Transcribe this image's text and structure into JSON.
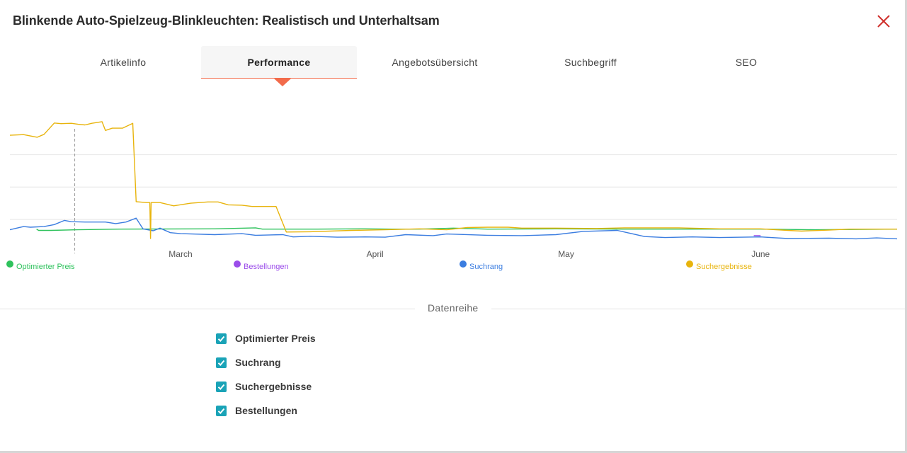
{
  "header": {
    "title": "Blinkende Auto-Spielzeug-Blinkleuchten: Realistisch und Unterhaltsam",
    "close_icon": "close-icon",
    "close_color": "#d0312d"
  },
  "tabs": [
    {
      "label": "Artikelinfo",
      "active": false
    },
    {
      "label": "Performance",
      "active": true
    },
    {
      "label": "Angebotsübersicht",
      "active": false
    },
    {
      "label": "Suchbegriff",
      "active": false
    },
    {
      "label": "SEO",
      "active": false
    }
  ],
  "colors": {
    "accent": "#f26b4b",
    "checkbox": "#1aa3b7",
    "optimierter_preis": "#2ec25c",
    "bestellungen": "#9b4dea",
    "suchrang": "#3b7de0",
    "suchergebnisse": "#e8b40c"
  },
  "chart_data": {
    "type": "line",
    "title": "",
    "x_axis_labels": [
      "March",
      "April",
      "May",
      "June"
    ],
    "legend_position": "bottom",
    "grid": "horizontal",
    "series": [
      {
        "name": "Optimierter Preis",
        "color": "#2ec25c",
        "values": [
          {
            "x": 3.9,
            "y": 2
          },
          {
            "x": 4.2,
            "y": 1.6
          },
          {
            "x": 6,
            "y": 1.6
          },
          {
            "x": 10,
            "y": 1.8
          },
          {
            "x": 16,
            "y": 2
          },
          {
            "x": 30,
            "y": 2.1
          },
          {
            "x": 36,
            "y": 2.4
          },
          {
            "x": 37,
            "y": 2
          },
          {
            "x": 45,
            "y": 2
          },
          {
            "x": 52,
            "y": 2.1
          },
          {
            "x": 56,
            "y": 2
          },
          {
            "x": 60,
            "y": 2
          },
          {
            "x": 65,
            "y": 2.3
          },
          {
            "x": 70,
            "y": 2
          },
          {
            "x": 80,
            "y": 2.1
          },
          {
            "x": 90,
            "y": 2
          },
          {
            "x": 100,
            "y": 2
          },
          {
            "x": 110,
            "y": 2
          },
          {
            "x": 118,
            "y": 1.8
          },
          {
            "x": 123,
            "y": 1.9
          },
          {
            "x": 130,
            "y": 2
          }
        ]
      },
      {
        "name": "Bestellungen",
        "color": "#9b4dea",
        "values": [
          {
            "x": 109,
            "y": 0
          },
          {
            "x": 110,
            "y": 0
          }
        ]
      },
      {
        "name": "Suchrang",
        "color": "#3b7de0",
        "values": [
          {
            "x": 0,
            "y": 1.8
          },
          {
            "x": 2,
            "y": 2.8
          },
          {
            "x": 3,
            "y": 2.6
          },
          {
            "x": 5,
            "y": 2.8
          },
          {
            "x": 6.5,
            "y": 3.4
          },
          {
            "x": 8,
            "y": 4.7
          },
          {
            "x": 9,
            "y": 4.3
          },
          {
            "x": 11,
            "y": 4.2
          },
          {
            "x": 14,
            "y": 4.2
          },
          {
            "x": 15.5,
            "y": 3.7
          },
          {
            "x": 17,
            "y": 4.2
          },
          {
            "x": 18.5,
            "y": 5.4
          },
          {
            "x": 19.5,
            "y": 2.1
          },
          {
            "x": 21,
            "y": 1.5
          },
          {
            "x": 22,
            "y": 2.3
          },
          {
            "x": 23.5,
            "y": 0.9
          },
          {
            "x": 25,
            "y": 0.6
          },
          {
            "x": 30,
            "y": 0.3
          },
          {
            "x": 34,
            "y": 0.6
          },
          {
            "x": 36,
            "y": 0.1
          },
          {
            "x": 40,
            "y": 0.3
          },
          {
            "x": 41.5,
            "y": -0.4
          },
          {
            "x": 44,
            "y": -0.2
          },
          {
            "x": 48,
            "y": -0.5
          },
          {
            "x": 52,
            "y": -0.4
          },
          {
            "x": 55,
            "y": -0.5
          },
          {
            "x": 58,
            "y": 0.3
          },
          {
            "x": 62,
            "y": 0
          },
          {
            "x": 64,
            "y": 0.5
          },
          {
            "x": 70,
            "y": 0.1
          },
          {
            "x": 75,
            "y": 0
          },
          {
            "x": 80,
            "y": 0.3
          },
          {
            "x": 84,
            "y": 1.3
          },
          {
            "x": 89,
            "y": 1.6
          },
          {
            "x": 93,
            "y": -0.3
          },
          {
            "x": 96,
            "y": -0.6
          },
          {
            "x": 100,
            "y": -0.4
          },
          {
            "x": 104,
            "y": -0.6
          },
          {
            "x": 110,
            "y": -0.4
          },
          {
            "x": 114,
            "y": -0.9
          },
          {
            "x": 120,
            "y": -0.8
          },
          {
            "x": 124,
            "y": -1
          },
          {
            "x": 127,
            "y": -0.7
          },
          {
            "x": 130,
            "y": -1
          }
        ]
      },
      {
        "name": "Suchergebnisse",
        "color": "#e8b40c",
        "values": [
          {
            "x": 0,
            "y": 31
          },
          {
            "x": 2,
            "y": 31.2
          },
          {
            "x": 3,
            "y": 30.8
          },
          {
            "x": 4,
            "y": 30.4
          },
          {
            "x": 5,
            "y": 31.3
          },
          {
            "x": 6.5,
            "y": 34.8
          },
          {
            "x": 7.5,
            "y": 34.6
          },
          {
            "x": 9,
            "y": 34.7
          },
          {
            "x": 10,
            "y": 34.4
          },
          {
            "x": 11,
            "y": 34.2
          },
          {
            "x": 12,
            "y": 34.7
          },
          {
            "x": 13.5,
            "y": 35.2
          },
          {
            "x": 14,
            "y": 32.5
          },
          {
            "x": 15,
            "y": 33.2
          },
          {
            "x": 16.5,
            "y": 33.2
          },
          {
            "x": 18,
            "y": 34.7
          },
          {
            "x": 18.5,
            "y": 10.5
          },
          {
            "x": 20,
            "y": 10.2
          },
          {
            "x": 20.5,
            "y": 10.2
          },
          {
            "x": 20.6,
            "y": -0.9
          },
          {
            "x": 20.7,
            "y": 10.2
          },
          {
            "x": 22,
            "y": 10.2
          },
          {
            "x": 24,
            "y": 9.2
          },
          {
            "x": 26.5,
            "y": 10
          },
          {
            "x": 29,
            "y": 10.4
          },
          {
            "x": 30.5,
            "y": 10.4
          },
          {
            "x": 32,
            "y": 9.5
          },
          {
            "x": 34,
            "y": 9.4
          },
          {
            "x": 35.5,
            "y": 9
          },
          {
            "x": 39,
            "y": 9
          },
          {
            "x": 40.5,
            "y": 1.1
          },
          {
            "x": 44,
            "y": 1.2
          },
          {
            "x": 50,
            "y": 1.6
          },
          {
            "x": 55,
            "y": 1.8
          },
          {
            "x": 60,
            "y": 2.1
          },
          {
            "x": 64,
            "y": 1.8
          },
          {
            "x": 67,
            "y": 2.5
          },
          {
            "x": 70,
            "y": 2.6
          },
          {
            "x": 73,
            "y": 2.6
          },
          {
            "x": 75,
            "y": 2.3
          },
          {
            "x": 80,
            "y": 2.3
          },
          {
            "x": 86,
            "y": 2.2
          },
          {
            "x": 90,
            "y": 2.4
          },
          {
            "x": 98,
            "y": 2.4
          },
          {
            "x": 104,
            "y": 2.1
          },
          {
            "x": 110,
            "y": 2.1
          },
          {
            "x": 114,
            "y": 1.6
          },
          {
            "x": 116,
            "y": 1.4
          },
          {
            "x": 120,
            "y": 1.7
          },
          {
            "x": 123,
            "y": 2
          },
          {
            "x": 130,
            "y": 2
          }
        ]
      }
    ],
    "x_tick_positions": [
      25,
      53.5,
      81.5,
      110
    ],
    "x_range": [
      0,
      130
    ],
    "y_range": [
      -2,
      40
    ],
    "gridlines_y": [
      5,
      15,
      25
    ],
    "marker_line_x": 9.5
  },
  "divider": {
    "label": "Datenreihe"
  },
  "series_toggles": [
    {
      "label": "Optimierter Preis",
      "checked": true
    },
    {
      "label": "Suchrang",
      "checked": true
    },
    {
      "label": "Suchergebnisse",
      "checked": true
    },
    {
      "label": "Bestellungen",
      "checked": true
    }
  ]
}
